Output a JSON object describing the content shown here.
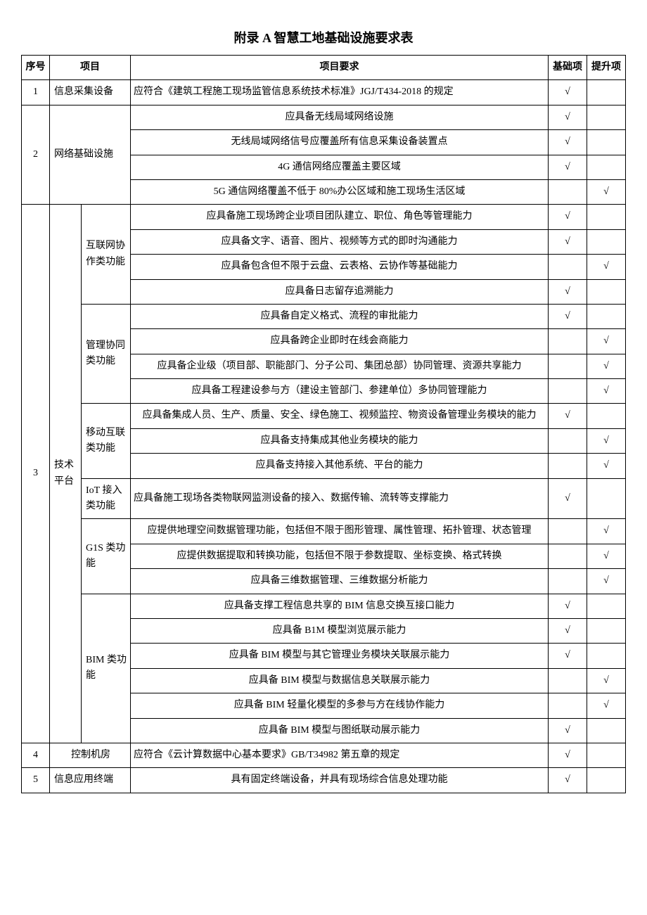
{
  "title": "附录 A 智慧工地基础设施要求表",
  "headers": {
    "idx": "序号",
    "project": "项目",
    "requirement": "项目要求",
    "base": "基础项",
    "upgrade": "提升项"
  },
  "check_mark": "√",
  "sections": [
    {
      "idx": "1",
      "cat": "信息采集设备",
      "rows": [
        {
          "req": "应符合《建筑工程施工现场监管信息系统技术标准》JGJ/T434-2018 的规定",
          "base": true,
          "upgrade": false,
          "align": "left"
        }
      ]
    },
    {
      "idx": "2",
      "cat": "网络基础设施",
      "rows": [
        {
          "req": "应具备无线局域网络设施",
          "base": true,
          "upgrade": false
        },
        {
          "req": "无线局域网络信号应覆盖所有信息采集设备装置点",
          "base": true,
          "upgrade": false
        },
        {
          "req": "4G 通信网络应覆盖主要区域",
          "base": true,
          "upgrade": false
        },
        {
          "req": "5G 通信网络覆盖不低于 80%办公区域和施工现场生活区域",
          "base": false,
          "upgrade": true
        }
      ]
    },
    {
      "idx": "3",
      "cat1": "技术平台",
      "groups": [
        {
          "cat2": "互联网协作类功能",
          "rows": [
            {
              "req": "应具备施工现场跨企业项目团队建立、职位、角色等管理能力",
              "base": true,
              "upgrade": false
            },
            {
              "req": "应具备文字、语音、图片、视频等方式的即时沟通能力",
              "base": true,
              "upgrade": false
            },
            {
              "req": "应具备包含但不限于云盘、云表格、云协作等基础能力",
              "base": false,
              "upgrade": true
            },
            {
              "req": "应具备日志留存追溯能力",
              "base": true,
              "upgrade": false
            }
          ]
        },
        {
          "cat2": "管理协同类功能",
          "rows": [
            {
              "req": "应具备自定义格式、流程的审批能力",
              "base": true,
              "upgrade": false
            },
            {
              "req": "应具备跨企业即时在线会商能力",
              "base": false,
              "upgrade": true
            },
            {
              "req": "应具备企业级（项目部、职能部门、分子公司、集团总部）协同管理、资源共享能力",
              "base": false,
              "upgrade": true
            },
            {
              "req": "应具备工程建设参与方（建设主管部门、参建单位）多协同管理能力",
              "base": false,
              "upgrade": true
            }
          ]
        },
        {
          "cat2": "移动互联类功能",
          "rows": [
            {
              "req": "应具备集成人员、生产、质量、安全、绿色施工、视频监控、物资设备管理业务模块的能力",
              "base": true,
              "upgrade": false
            },
            {
              "req": "应具备支持集成其他业务模块的能力",
              "base": false,
              "upgrade": true
            },
            {
              "req": "应具备支持接入其他系统、平台的能力",
              "base": false,
              "upgrade": true
            }
          ]
        },
        {
          "cat2": "IoT 接入类功能",
          "rows": [
            {
              "req": "应具备施工现场各类物联网监测设备的接入、数据传输、流转等支撑能力",
              "base": true,
              "upgrade": false,
              "align": "left"
            }
          ]
        },
        {
          "cat2": "G1S 类功能",
          "rows": [
            {
              "req": "应提供地理空间数据管理功能，包括但不限于图形管理、属性管理、拓扑管理、状态管理",
              "base": false,
              "upgrade": true
            },
            {
              "req": "应提供数据提取和转换功能，包括但不限于参数提取、坐标变换、格式转换",
              "base": false,
              "upgrade": true
            },
            {
              "req": "应具备三维数据管理、三维数据分析能力",
              "base": false,
              "upgrade": true
            }
          ]
        },
        {
          "cat2": "BIM 类功能",
          "rows": [
            {
              "req": "应具备支撑工程信息共享的 BIM 信息交换互接口能力",
              "base": true,
              "upgrade": false
            },
            {
              "req": "应具备 B1M 模型浏览展示能力",
              "base": true,
              "upgrade": false
            },
            {
              "req": "应具备 BIM 模型与其它管理业务模块关联展示能力",
              "base": true,
              "upgrade": false
            },
            {
              "req": "应具备 BIM 模型与数据信息关联展示能力",
              "base": false,
              "upgrade": true
            },
            {
              "req": "应具备 BIM 轻量化模型的多参与方在线协作能力",
              "base": false,
              "upgrade": true
            },
            {
              "req": "应具备 BIM 模型与图纸联动展示能力",
              "base": true,
              "upgrade": false
            }
          ]
        }
      ]
    },
    {
      "idx": "4",
      "cat": "控制机房",
      "rows": [
        {
          "req": "应符合《云计算数据中心基本要求》GB/T34982 第五章的规定",
          "base": true,
          "upgrade": false,
          "align": "left"
        }
      ]
    },
    {
      "idx": "5",
      "cat": "信息应用终端",
      "rows": [
        {
          "req": "具有固定终端设备，并具有现场综合信息处理功能",
          "base": true,
          "upgrade": false
        }
      ]
    }
  ]
}
